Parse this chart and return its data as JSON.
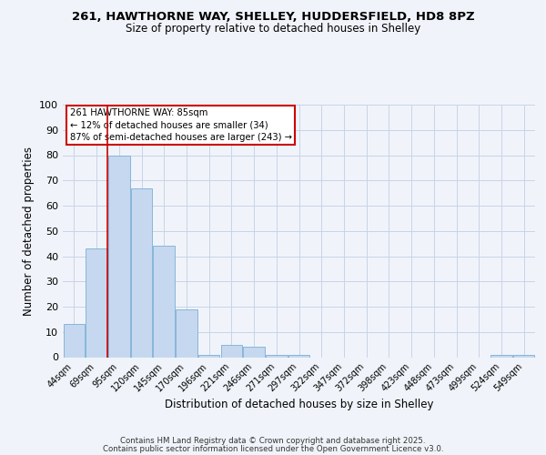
{
  "title1": "261, HAWTHORNE WAY, SHELLEY, HUDDERSFIELD, HD8 8PZ",
  "title2": "Size of property relative to detached houses in Shelley",
  "xlabel": "Distribution of detached houses by size in Shelley",
  "ylabel": "Number of detached properties",
  "categories": [
    "44sqm",
    "69sqm",
    "95sqm",
    "120sqm",
    "145sqm",
    "170sqm",
    "196sqm",
    "221sqm",
    "246sqm",
    "271sqm",
    "297sqm",
    "322sqm",
    "347sqm",
    "372sqm",
    "398sqm",
    "423sqm",
    "448sqm",
    "473sqm",
    "499sqm",
    "524sqm",
    "549sqm"
  ],
  "values": [
    13,
    43,
    80,
    67,
    44,
    19,
    1,
    5,
    4,
    1,
    1,
    0,
    0,
    0,
    0,
    0,
    0,
    0,
    0,
    1,
    1
  ],
  "bar_color": "#c5d8ef",
  "bar_edge_color": "#7bafd4",
  "vline_x": 1.5,
  "vline_color": "#cc0000",
  "annotation_text": "261 HAWTHORNE WAY: 85sqm\n← 12% of detached houses are smaller (34)\n87% of semi-detached houses are larger (243) →",
  "annotation_box_color": "#ffffff",
  "annotation_box_edge": "#cc0000",
  "ylim": [
    0,
    100
  ],
  "yticks": [
    0,
    10,
    20,
    30,
    40,
    50,
    60,
    70,
    80,
    90,
    100
  ],
  "footnote1": "Contains HM Land Registry data © Crown copyright and database right 2025.",
  "footnote2": "Contains public sector information licensed under the Open Government Licence v3.0.",
  "bg_color": "#f0f4fa",
  "grid_color": "#c8d4e8"
}
